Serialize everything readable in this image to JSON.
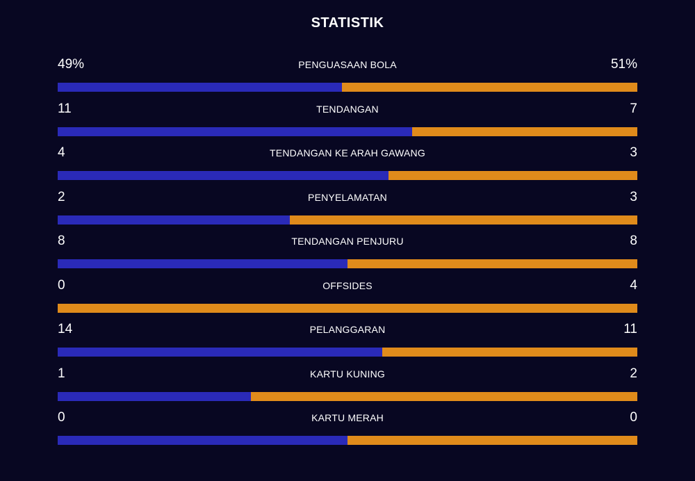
{
  "title": "STATISTIK",
  "colors": {
    "background": "#080722",
    "home": "#2a2ab8",
    "away": "#e08b1b"
  },
  "stats": [
    {
      "label": "PENGUASAAN BOLA",
      "home": "49%",
      "away": "51%",
      "home_share": 0.49
    },
    {
      "label": "TENDANGAN",
      "home": "11",
      "away": "7",
      "home_share": 0.611
    },
    {
      "label": "TENDANGAN KE ARAH GAWANG",
      "home": "4",
      "away": "3",
      "home_share": 0.571
    },
    {
      "label": "PENYELAMATAN",
      "home": "2",
      "away": "3",
      "home_share": 0.4
    },
    {
      "label": "TENDANGAN PENJURU",
      "home": "8",
      "away": "8",
      "home_share": 0.5
    },
    {
      "label": "OFFSIDES",
      "home": "0",
      "away": "4",
      "home_share": 0
    },
    {
      "label": "PELANGGARAN",
      "home": "14",
      "away": "11",
      "home_share": 0.56
    },
    {
      "label": "KARTU KUNING",
      "home": "1",
      "away": "2",
      "home_share": 0.333
    },
    {
      "label": "KARTU MERAH",
      "home": "0",
      "away": "0",
      "home_share": 0.5
    }
  ]
}
